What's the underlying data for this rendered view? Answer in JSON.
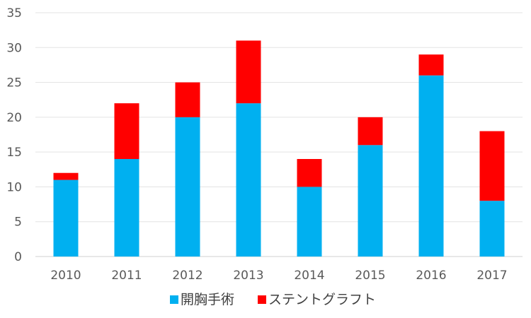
{
  "chart_data": {
    "type": "bar",
    "stacked": true,
    "title": "",
    "xlabel": "",
    "ylabel": "",
    "categories": [
      "2010",
      "2011",
      "2012",
      "2013",
      "2014",
      "2015",
      "2016",
      "2017"
    ],
    "series": [
      {
        "name": "開胸手術",
        "color": "#00B0F0",
        "values": [
          11,
          14,
          20,
          22,
          10,
          16,
          26,
          8
        ]
      },
      {
        "name": "ステントグラフト",
        "color": "#FF0000",
        "values": [
          1,
          8,
          5,
          9,
          4,
          4,
          3,
          10
        ]
      }
    ],
    "ylim": [
      0,
      35
    ],
    "yticks": [
      0,
      5,
      10,
      15,
      20,
      25,
      30,
      35
    ],
    "grid": true,
    "legend": "bottom"
  }
}
